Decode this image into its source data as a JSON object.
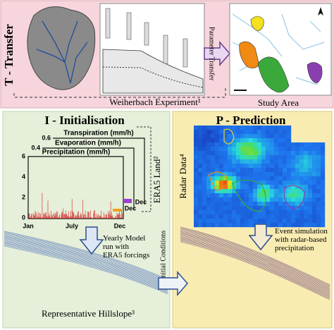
{
  "transfer": {
    "title": "T - Transfer",
    "source_label": "Weiherbach Experiment¹",
    "target_label": "Study Area",
    "arrow_label": "Parameter Transfer"
  },
  "initialisation": {
    "title": "I - Initialisation",
    "chart": {
      "series_labels": [
        "Transpiration (mm/h)",
        "Evaporation (mm/h)",
        "Precipitation (mm/h)"
      ],
      "small_ticks": [
        "0.6",
        "0.4"
      ],
      "y_ticks": [
        "0",
        "2",
        "4",
        "6"
      ],
      "x_ticks": [
        "Jan",
        "July",
        "Dec"
      ],
      "stack_x_ticks": [
        "Dec",
        "Dec"
      ],
      "side_label": "ERA5 Land²"
    },
    "step_label": [
      "Yearly Model",
      "run with",
      "ERA5 forcings"
    ],
    "link_label": "Initial Conditions",
    "hillslope_label": "Representative Hillslope³"
  },
  "prediction": {
    "title": "P - Prediction",
    "radar_label": "Radar Data⁴",
    "step_label": [
      "Event simulation",
      "with radar-based",
      "precipitation"
    ]
  }
}
